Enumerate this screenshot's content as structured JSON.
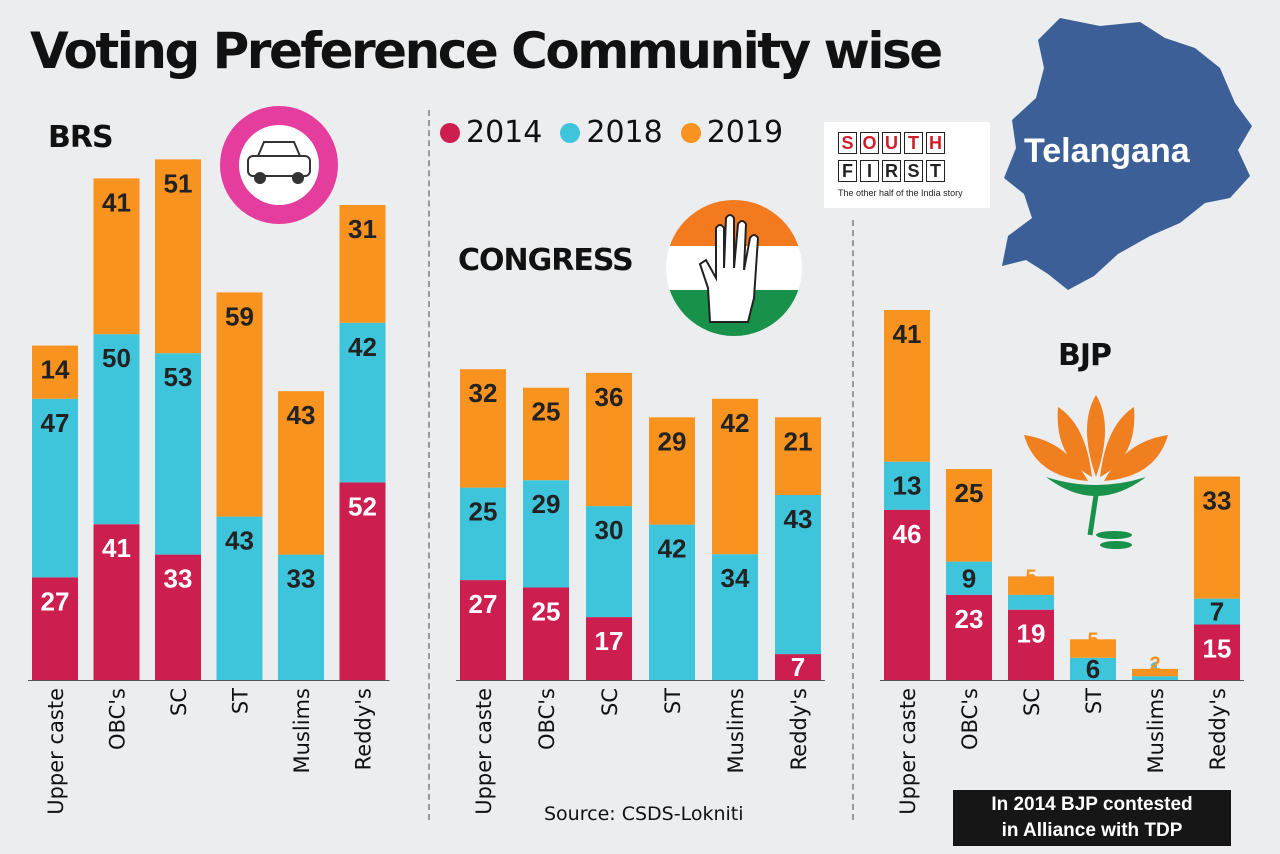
{
  "title": "Voting Preference Community wise",
  "legend": [
    {
      "label": "2014",
      "color": "#cc1f4f"
    },
    {
      "label": "2018",
      "color": "#3ec5dc"
    },
    {
      "label": "2019",
      "color": "#f7931e"
    }
  ],
  "source": "Source: CSDS-Lokniti",
  "note": [
    "In 2014 BJP contested",
    "in Alliance with TDP"
  ],
  "map_label": "Telangana",
  "logo": {
    "row1": [
      "S",
      "O",
      "U",
      "T",
      "H"
    ],
    "row2": [
      "F",
      "I",
      "R",
      "S",
      "T"
    ],
    "tagline": "The other half of the India story"
  },
  "colors": {
    "y2014": "#cc1f4f",
    "y2018": "#3ec5dc",
    "y2019": "#f7931e",
    "map": "#3b5f96"
  },
  "chart_data": [
    {
      "type": "bar",
      "stacked": true,
      "title": "BRS",
      "categories": [
        "Upper caste",
        "OBC's",
        "SC",
        "ST",
        "Muslims",
        "Reddy's"
      ],
      "series": [
        {
          "name": "2014",
          "values": [
            27,
            41,
            33,
            0,
            0,
            52
          ]
        },
        {
          "name": "2018",
          "values": [
            47,
            50,
            53,
            43,
            33,
            42
          ]
        },
        {
          "name": "2019",
          "values": [
            14,
            41,
            51,
            59,
            43,
            31
          ]
        }
      ]
    },
    {
      "type": "bar",
      "stacked": true,
      "title": "CONGRESS",
      "categories": [
        "Upper caste",
        "OBC's",
        "SC",
        "ST",
        "Muslims",
        "Reddy's"
      ],
      "series": [
        {
          "name": "2014",
          "values": [
            27,
            25,
            17,
            0,
            0,
            7
          ]
        },
        {
          "name": "2018",
          "values": [
            25,
            29,
            30,
            42,
            34,
            43
          ]
        },
        {
          "name": "2019",
          "values": [
            32,
            25,
            36,
            29,
            42,
            21
          ]
        }
      ]
    },
    {
      "type": "bar",
      "stacked": true,
      "title": "BJP",
      "categories": [
        "Upper caste",
        "OBC's",
        "SC",
        "ST",
        "Muslims",
        "Reddy's"
      ],
      "series": [
        {
          "name": "2014",
          "values": [
            46,
            23,
            19,
            0,
            0,
            15
          ]
        },
        {
          "name": "2018",
          "values": [
            13,
            9,
            4,
            6,
            1,
            7
          ]
        },
        {
          "name": "2019",
          "values": [
            41,
            25,
            5,
            5,
            2,
            33
          ]
        }
      ]
    }
  ]
}
